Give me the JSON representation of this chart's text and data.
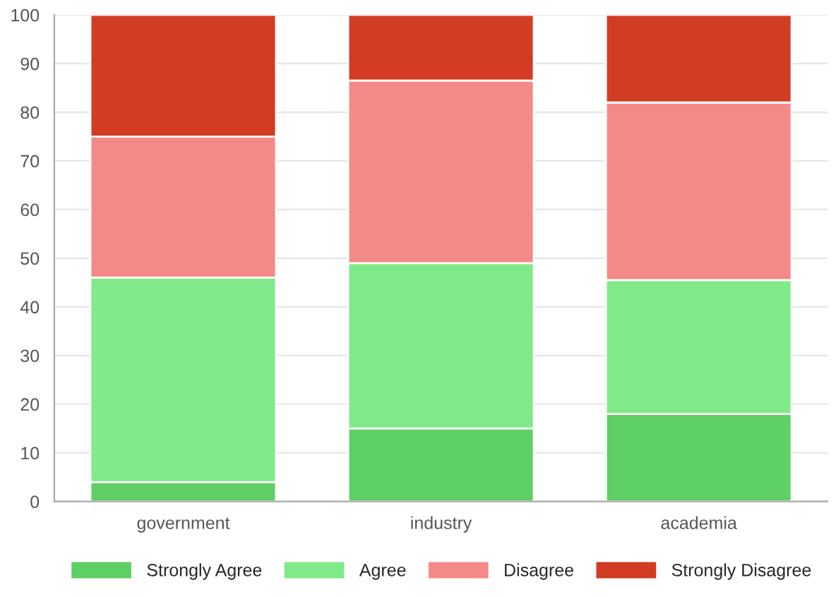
{
  "chart_data": {
    "type": "bar",
    "stacked": true,
    "categories": [
      "government",
      "industry",
      "academia"
    ],
    "series": [
      {
        "name": "Strongly Agree",
        "color": "#5ecf65",
        "values": [
          4,
          15,
          18
        ]
      },
      {
        "name": "Agree",
        "color": "#80e989",
        "values": [
          42,
          34,
          27.5
        ]
      },
      {
        "name": "Disagree",
        "color": "#f48a88",
        "values": [
          29,
          37.5,
          36.5
        ]
      },
      {
        "name": "Strongly Disagree",
        "color": "#d13c22",
        "values": [
          25,
          13.5,
          18
        ]
      }
    ],
    "ylim": [
      0,
      100
    ],
    "yticks": [
      0,
      10,
      20,
      30,
      40,
      50,
      60,
      70,
      80,
      90,
      100
    ],
    "grid": "y",
    "legend": "bottom"
  }
}
